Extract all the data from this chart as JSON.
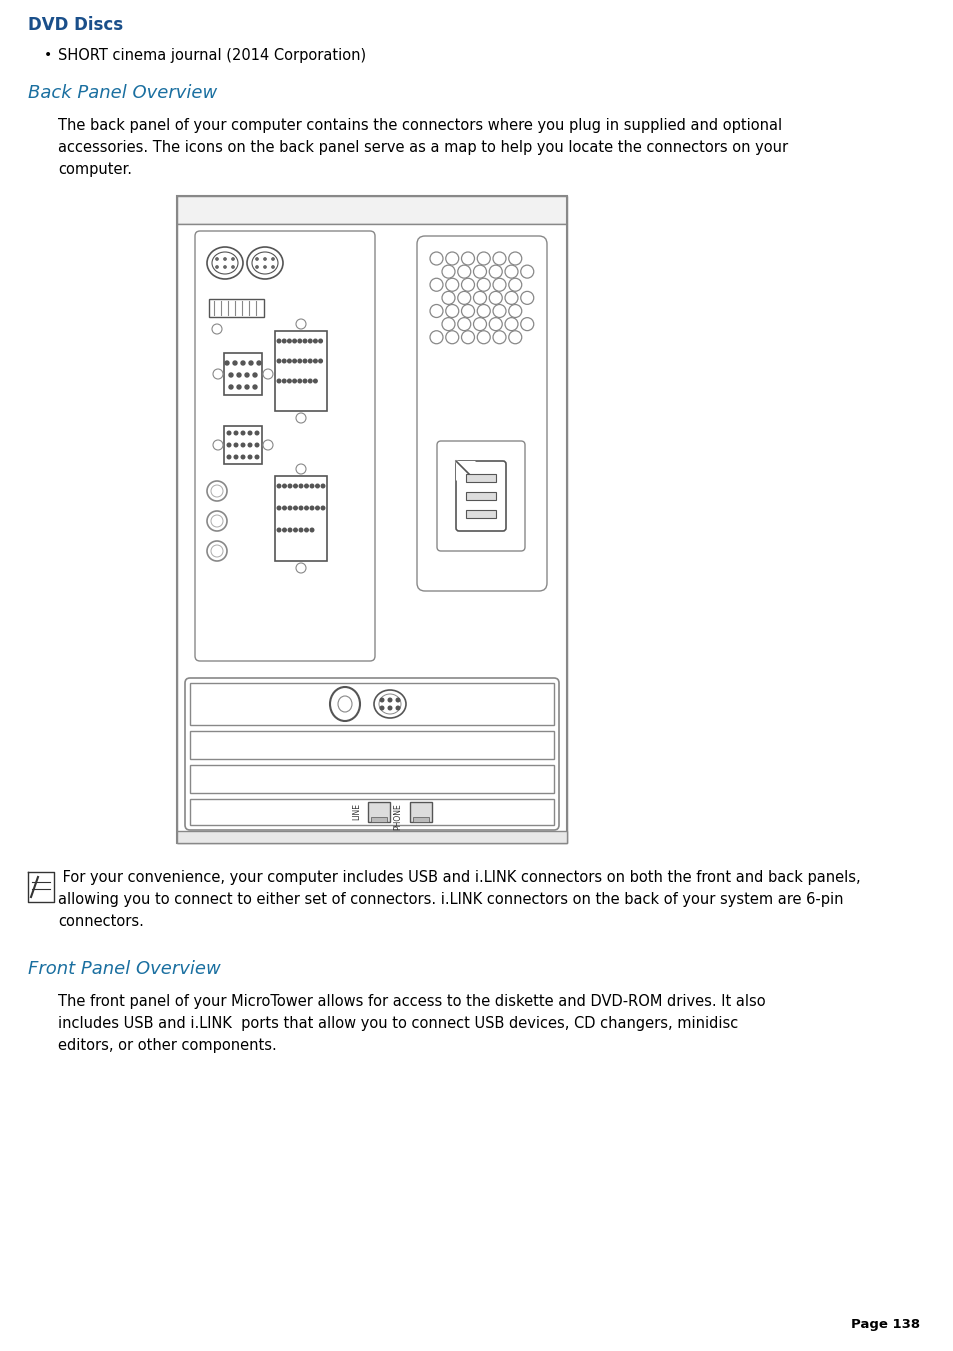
{
  "background_color": "#ffffff",
  "section1_heading": "DVD Discs",
  "section1_heading_color": "#1a4f8a",
  "bullet_text": "SHORT cinema journal (2014 Corporation)",
  "section2_heading": "Back Panel Overview",
  "section2_heading_color": "#1a6fa0",
  "back_panel_body": "The back panel of your computer contains the connectors where you plug in supplied and optional\naccessories. The icons on the back panel serve as a map to help you locate the connectors on your\ncomputer.",
  "note_text": " For your convenience, your computer includes USB and i.LINK connectors on both the front and back panels,\nallowing you to connect to either set of connectors. i.LINK connectors on the back of your system are 6-pin\nconnectors.",
  "section3_heading": "Front Panel Overview",
  "section3_heading_color": "#1a6fa0",
  "front_panel_body": "The front panel of your MicroTower allows for access to the diskette and DVD-ROM drives. It also\nincludes USB and i.LINK  ports that allow you to connect USB devices, CD changers, minidisc\neditors, or other components.",
  "page_number": "Page 138",
  "body_font_size": 10.5,
  "heading1_font_size": 12,
  "heading2_font_size": 13
}
